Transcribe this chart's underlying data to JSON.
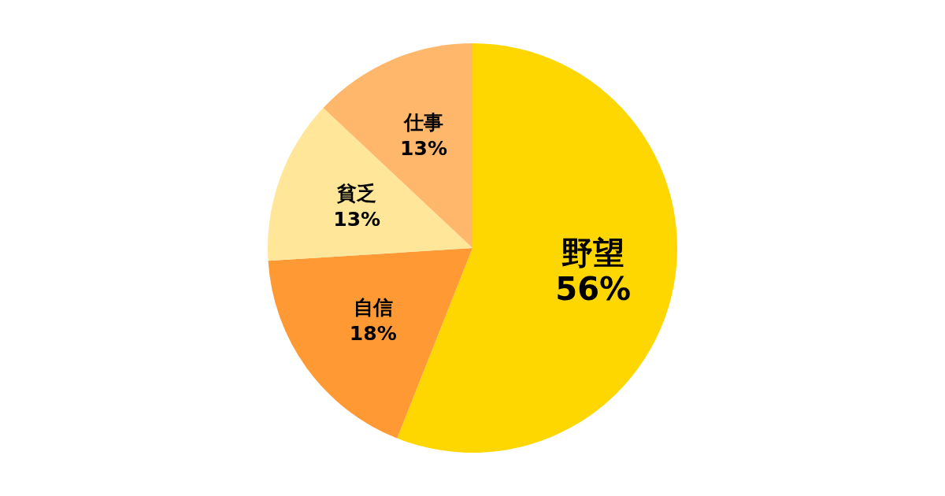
{
  "chart_data": {
    "type": "pie",
    "categories": [
      "野望",
      "自信",
      "貧乏",
      "仕事"
    ],
    "values": [
      56,
      18,
      13,
      13
    ],
    "value_labels": [
      "56%",
      "18%",
      "13%",
      "13%"
    ],
    "colors": [
      "#ffd700",
      "#ff9933",
      "#ffe699",
      "#ffb76b"
    ],
    "data_labels": true
  }
}
